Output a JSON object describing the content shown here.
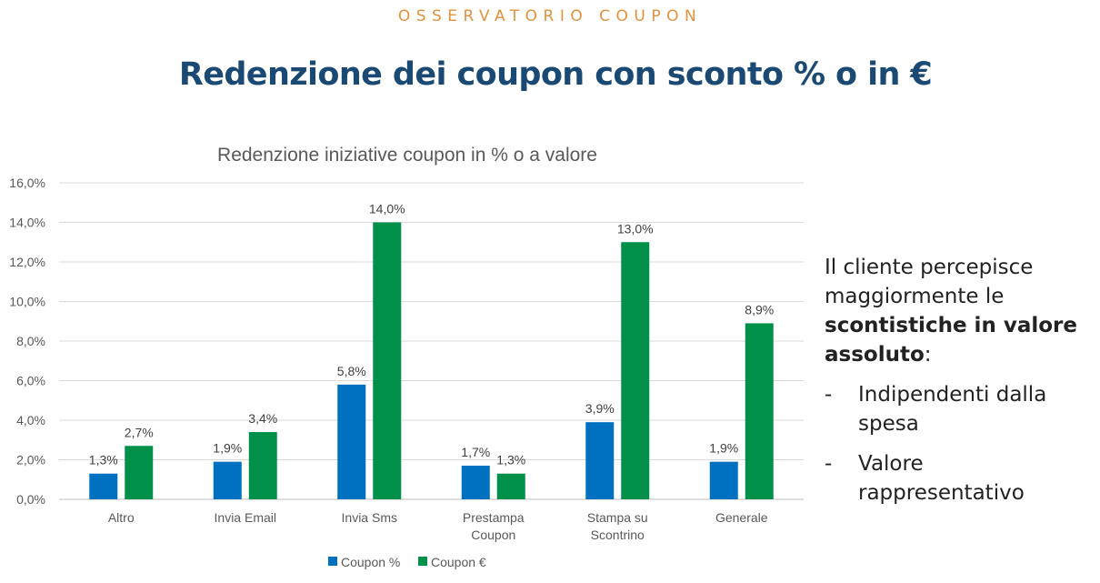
{
  "header": {
    "kicker": "OSSERVATORIO COUPON",
    "title": "Redenzione dei coupon con sconto % o in €"
  },
  "chart_data": {
    "type": "bar",
    "title": "Redenzione iniziative coupon in % o a valore",
    "categories": [
      [
        "Altro"
      ],
      [
        "Invia Email"
      ],
      [
        "Invia Sms"
      ],
      [
        "Prestampa",
        "Coupon"
      ],
      [
        "Stampa su",
        "Scontrino"
      ],
      [
        "Generale"
      ]
    ],
    "series": [
      {
        "name": "Coupon %",
        "values": [
          1.3,
          1.9,
          5.8,
          1.7,
          3.9,
          1.9
        ],
        "labels": [
          "1,3%",
          "1,9%",
          "5,8%",
          "1,7%",
          "3,9%",
          "1,9%"
        ],
        "color": "#0070c0"
      },
      {
        "name": "Coupon €",
        "values": [
          2.7,
          3.4,
          14.0,
          1.3,
          13.0,
          8.9
        ],
        "labels": [
          "2,7%",
          "3,4%",
          "14,0%",
          "1,3%",
          "13,0%",
          "8,9%"
        ],
        "color": "#00904a"
      }
    ],
    "ylim": [
      0,
      16
    ],
    "yticks": [
      "0,0%",
      "2,0%",
      "4,0%",
      "6,0%",
      "8,0%",
      "10,0%",
      "12,0%",
      "14,0%",
      "16,0%"
    ],
    "grid": true,
    "legend_position": "bottom"
  },
  "side": {
    "line1": "Il cliente percepisce",
    "line2": "maggiormente le",
    "bold1": "scontistiche in valore",
    "bold2": "assoluto",
    "colon": ":",
    "bullets": [
      {
        "dash": "-",
        "line1": "Indipendenti dalla",
        "line2": "spesa"
      },
      {
        "dash": "-",
        "line1": "Valore",
        "line2": "rappresentativo"
      }
    ]
  }
}
